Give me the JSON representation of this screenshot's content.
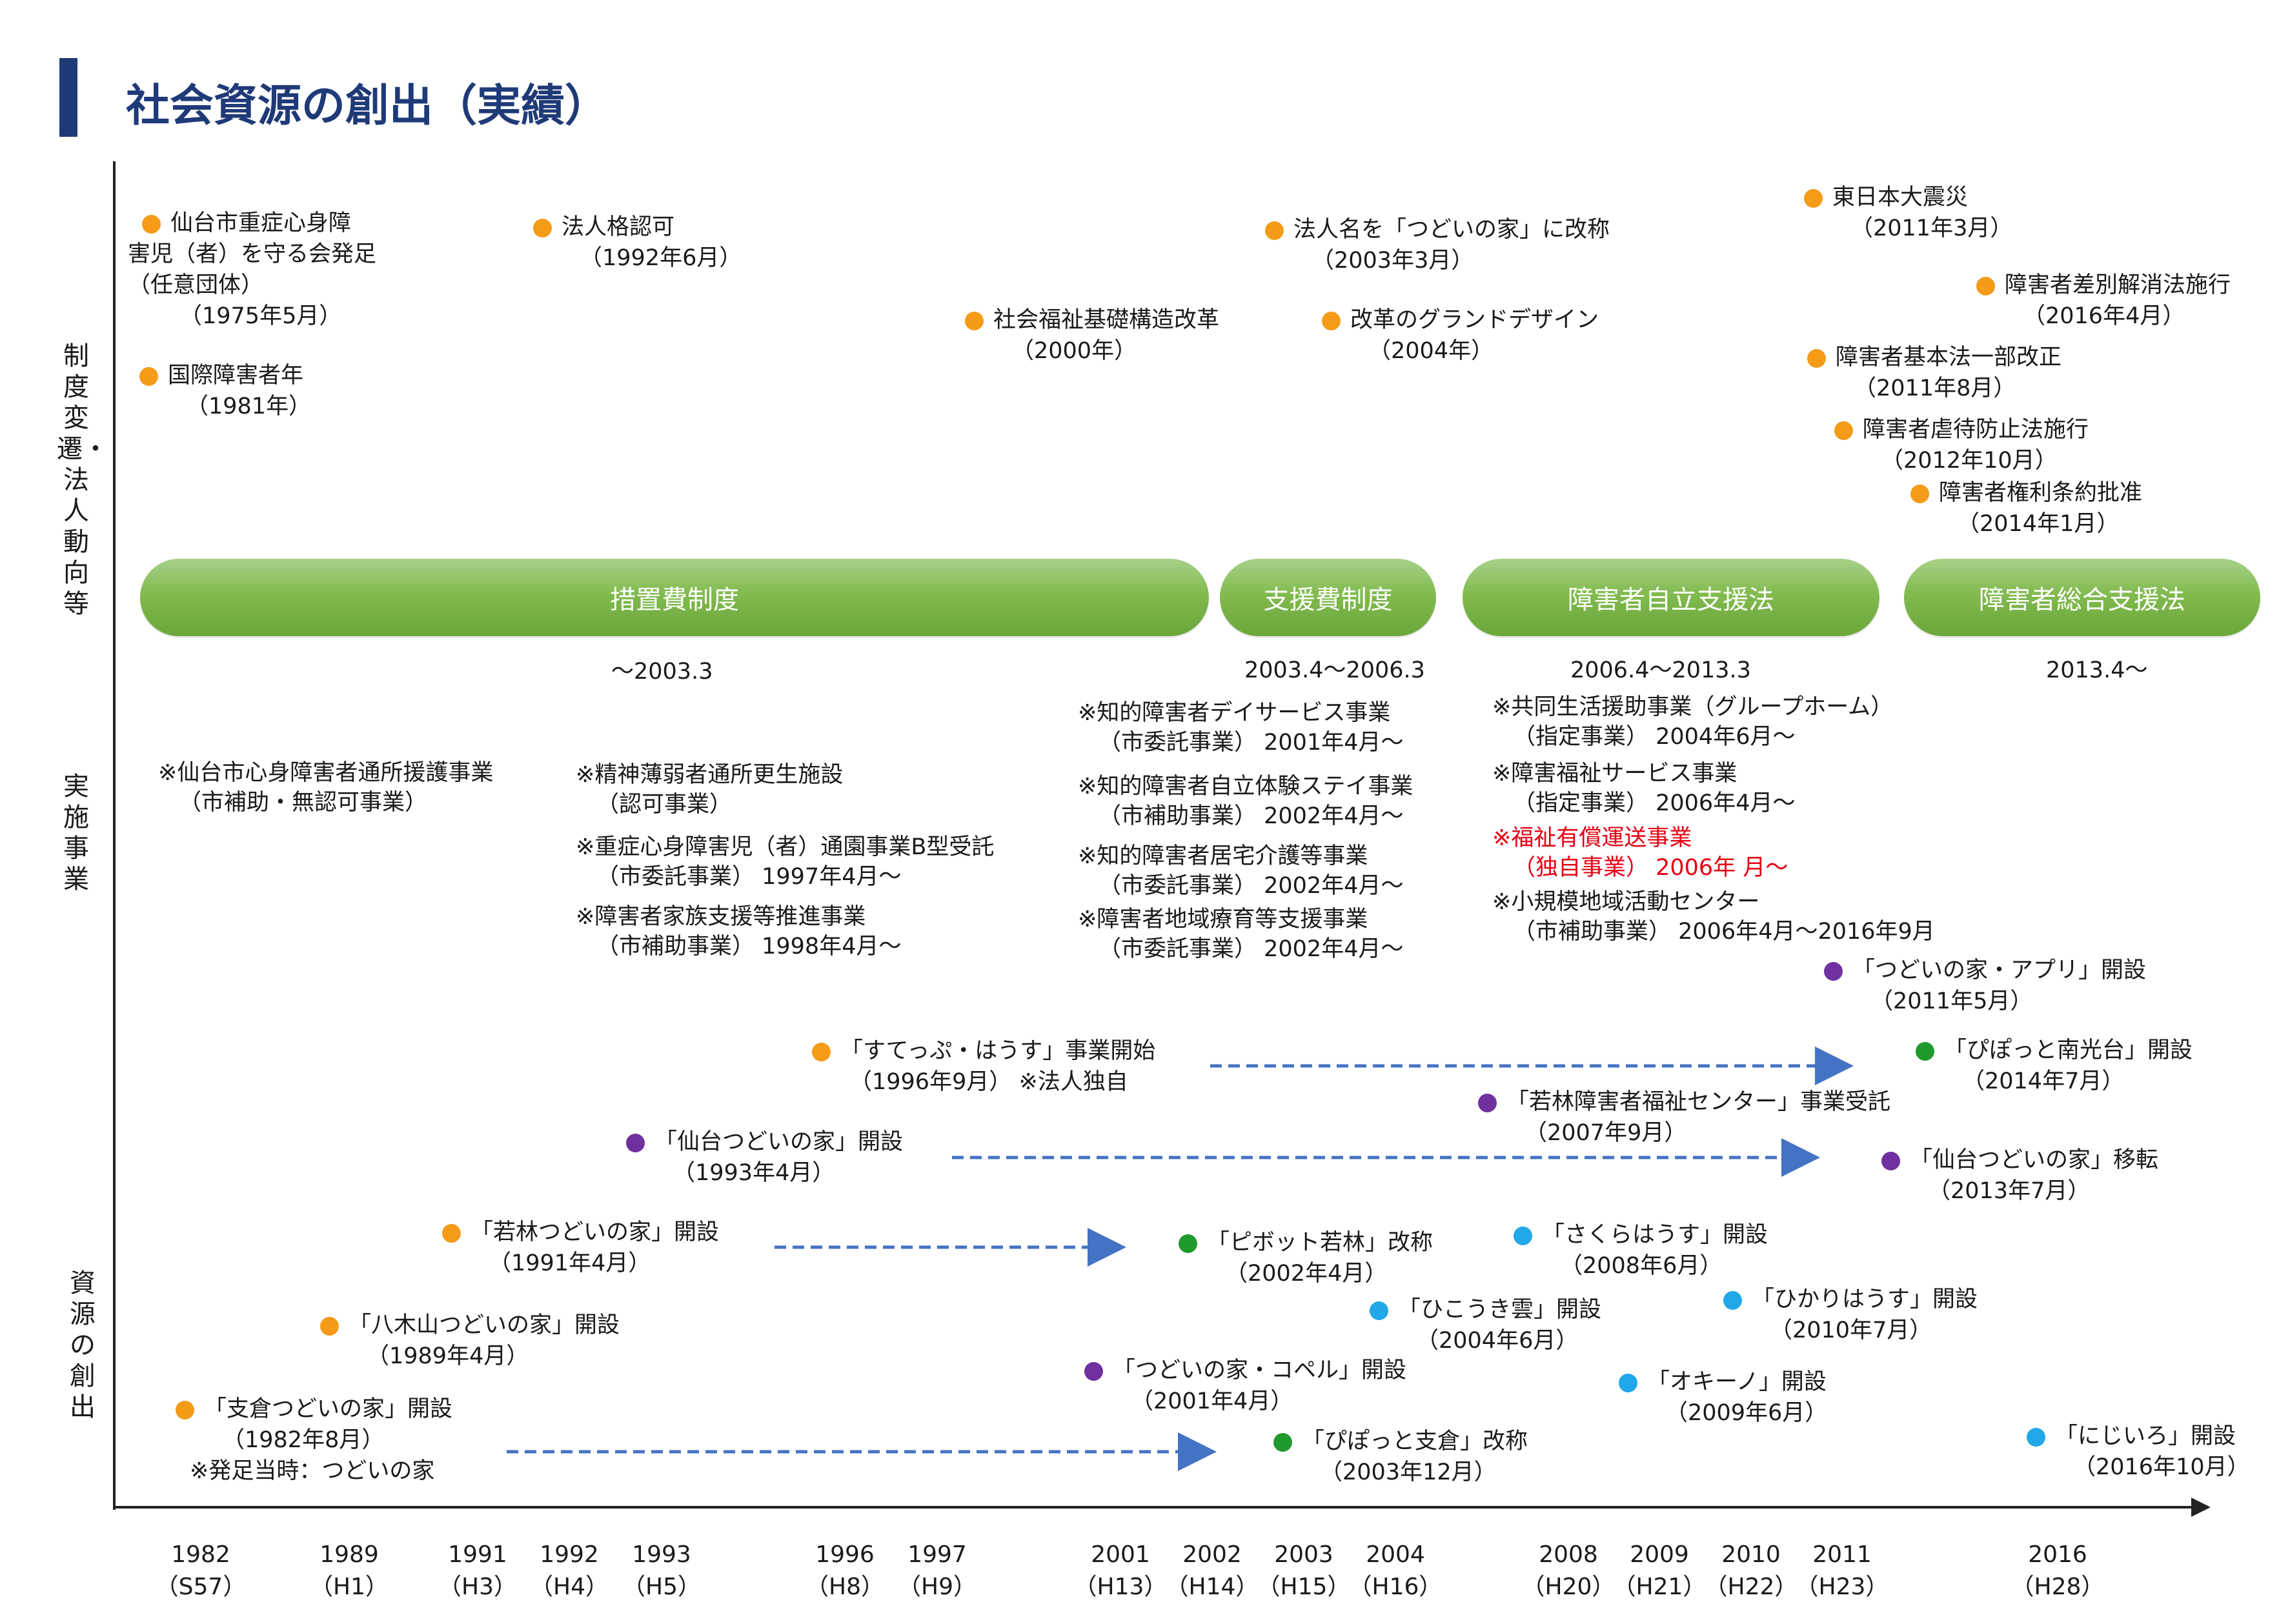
{
  "title": "社会資源の創出（実績）",
  "sections": {
    "policy": "制度変遷・法人動向等",
    "programs": "実施事業",
    "resources": "資源の創出"
  },
  "colors": {
    "title": "#1f3a78",
    "policy_dot": "#f59b18",
    "purple_dot": "#7030a0",
    "green_dot": "#1f9a2c",
    "blue_dot": "#20a8e8",
    "phase_bar": "#82bb4f",
    "arrow": "#4472c4",
    "highlight": "#e60012"
  },
  "policy_events": [
    {
      "text": "仙台市重症心身障",
      "l2": "害児（者）を守る会発足",
      "l3": "（任意団体）",
      "date": "（1975年5月）"
    },
    {
      "text": "国際障害者年",
      "date": "（1981年）"
    },
    {
      "text": "法人格認可",
      "date": "（1992年6月）"
    },
    {
      "text": "社会福祉基礎構造改革",
      "date": "（2000年）"
    },
    {
      "text": "法人名を「つどいの家」に改称",
      "date": "（2003年3月）"
    },
    {
      "text": "改革のグランドデザイン",
      "date": "（2004年）"
    },
    {
      "text": "東日本大震災",
      "date": "（2011年3月）"
    },
    {
      "text": "障害者差別解消法施行",
      "date": "（2016年4月）"
    },
    {
      "text": "障害者基本法一部改正",
      "date": "（2011年8月）"
    },
    {
      "text": "障害者虐待防止法施行",
      "date": "（2012年10月）"
    },
    {
      "text": "障害者権利条約批准",
      "date": "（2014年1月）"
    }
  ],
  "phases": [
    {
      "label": "措置費制度",
      "range": "〜2003.3"
    },
    {
      "label": "支援費制度",
      "range": "2003.4〜2006.3"
    },
    {
      "label": "障害者自立支援法",
      "range": "2006.4〜2013.3"
    },
    {
      "label": "障害者総合支援法",
      "range": "2013.4〜"
    }
  ],
  "programs": [
    {
      "l1": "※仙台市心身障害者通所援護事業",
      "l2": "（市補助・無認可事業）"
    },
    {
      "l1": "※精神薄弱者通所更生施設",
      "l2": "（認可事業）"
    },
    {
      "l1": "※重症心身障害児（者）通園事業B型受託",
      "l2": "（市委託事業）  1997年4月〜"
    },
    {
      "l1": "※障害者家族支援等推進事業",
      "l2": "（市補助事業）  1998年4月〜"
    },
    {
      "l1": "※知的障害者デイサービス事業",
      "l2": "（市委託事業）  2001年4月〜"
    },
    {
      "l1": "※知的障害者自立体験ステイ事業",
      "l2": "（市補助事業）  2002年4月〜"
    },
    {
      "l1": "※知的障害者居宅介護等事業",
      "l2": "（市委託事業）  2002年4月〜"
    },
    {
      "l1": "※障害者地域療育等支援事業",
      "l2": "（市委託事業）  2002年4月〜"
    },
    {
      "l1": "※共同生活援助事業（グループホーム）",
      "l2": "（指定事業）  2004年6月〜"
    },
    {
      "l1": "※障害福祉サービス事業",
      "l2": "（指定事業）  2006年4月〜"
    },
    {
      "l1": "※福祉有償運送事業",
      "l2": "（独自事業）  2006年  月〜"
    },
    {
      "l1": "※小規模地域活動センター",
      "l2": "（市補助事業）  2006年4月〜2016年9月"
    }
  ],
  "resources": [
    {
      "text": "「すてっぷ・はうす」事業開始",
      "date": "（1996年9月）  ※法人独自",
      "color": "orange"
    },
    {
      "text": "「仙台つどいの家」開設",
      "date": "（1993年4月）",
      "color": "purple"
    },
    {
      "text": "「若林つどいの家」開設",
      "date": "（1991年4月）",
      "color": "orange"
    },
    {
      "text": "「八木山つどいの家」開設",
      "date": "（1989年4月）",
      "color": "orange"
    },
    {
      "text": "「支倉つどいの家」開設",
      "date": "（1982年8月）",
      "extra": "※発足当時：つどいの家",
      "color": "orange"
    },
    {
      "text": "「つどいの家・アプリ」開設",
      "date": "（2011年5月）",
      "color": "purple"
    },
    {
      "text": "「ぴぽっと南光台」開設",
      "date": "（2014年7月）",
      "color": "green"
    },
    {
      "text": "「若林障害者福祉センター」事業受託",
      "date": "（2007年9月）",
      "color": "purple"
    },
    {
      "text": "「仙台つどいの家」移転",
      "date": "（2013年7月）",
      "color": "purple"
    },
    {
      "text": "「ピボット若林」改称",
      "date": "（2002年4月）",
      "color": "green"
    },
    {
      "text": "「さくらはうす」開設",
      "date": "（2008年6月）",
      "color": "blue"
    },
    {
      "text": "「ひかりはうす」開設",
      "date": "（2010年7月）",
      "color": "blue"
    },
    {
      "text": "「ひこうき雲」開設",
      "date": "（2004年6月）",
      "color": "blue"
    },
    {
      "text": "「つどいの家・コペル」開設",
      "date": "（2001年4月）",
      "color": "purple"
    },
    {
      "text": "「オキーノ」開設",
      "date": "（2009年6月）",
      "color": "blue"
    },
    {
      "text": "「ぴぽっと支倉」改称",
      "date": "（2003年12月）",
      "color": "green"
    },
    {
      "text": "「にじいろ」開設",
      "date": "（2016年10月）",
      "color": "blue"
    }
  ],
  "years": [
    {
      "y": "1982",
      "era": "（S57）"
    },
    {
      "y": "1989",
      "era": "（H1）"
    },
    {
      "y": "1991",
      "era": "（H3）"
    },
    {
      "y": "1992",
      "era": "（H4）"
    },
    {
      "y": "1993",
      "era": "（H5）"
    },
    {
      "y": "1996",
      "era": "（H8）"
    },
    {
      "y": "1997",
      "era": "（H9）"
    },
    {
      "y": "2001",
      "era": "（H13）"
    },
    {
      "y": "2002",
      "era": "（H14）"
    },
    {
      "y": "2003",
      "era": "（H15）"
    },
    {
      "y": "2004",
      "era": "（H16）"
    },
    {
      "y": "2008",
      "era": "（H20）"
    },
    {
      "y": "2009",
      "era": "（H21）"
    },
    {
      "y": "2010",
      "era": "（H22）"
    },
    {
      "y": "2011",
      "era": "（H23）"
    },
    {
      "y": "2016",
      "era": "（H28）"
    }
  ]
}
